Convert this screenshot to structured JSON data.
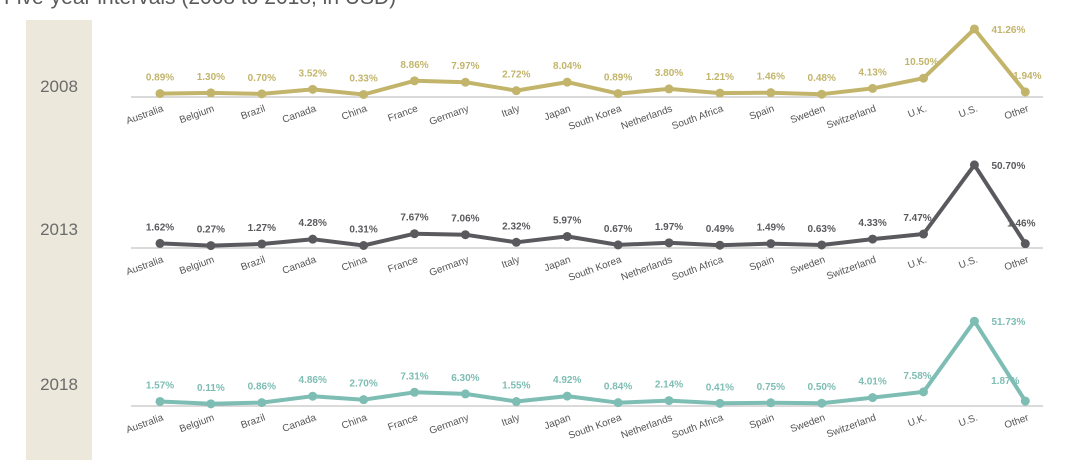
{
  "chart_data": {
    "type": "line",
    "title": "Five-year intervals (2008 to 2018, in USD)",
    "categories": [
      "Australia",
      "Belgium",
      "Brazil",
      "Canada",
      "China",
      "France",
      "Germany",
      "Italy",
      "Japan",
      "South Korea",
      "Netherlands",
      "South Africa",
      "Spain",
      "Sweden",
      "Switzerland",
      "U.K.",
      "U.S.",
      "Other"
    ],
    "ylim": [
      0,
      55
    ],
    "grid": false,
    "legend": "none",
    "series": [
      {
        "name": "2008",
        "color": "#c2b56b",
        "values": [
          0.89,
          1.3,
          0.7,
          3.52,
          0.33,
          8.86,
          7.97,
          2.72,
          8.04,
          0.89,
          3.8,
          1.21,
          1.46,
          0.48,
          4.13,
          10.5,
          41.26,
          1.94
        ],
        "labels": [
          "0.89%",
          "1.30%",
          "0.70%",
          "3.52%",
          "0.33%",
          "8.86%",
          "7.97%",
          "2.72%",
          "8.04%",
          "0.89%",
          "3.80%",
          "1.21%",
          "1.46%",
          "0.48%",
          "4.13%",
          "10.50%",
          "41.26%",
          "1.94%"
        ]
      },
      {
        "name": "2013",
        "color": "#5a5a5e",
        "values": [
          1.62,
          0.27,
          1.27,
          4.28,
          0.31,
          7.67,
          7.06,
          2.32,
          5.97,
          0.67,
          1.97,
          0.49,
          1.49,
          0.63,
          4.33,
          7.47,
          50.7,
          1.46
        ],
        "labels": [
          "1.62%",
          "0.27%",
          "1.27%",
          "4.28%",
          "0.31%",
          "7.67%",
          "7.06%",
          "2.32%",
          "5.97%",
          "0.67%",
          "1.97%",
          "0.49%",
          "1.49%",
          "0.63%",
          "4.33%",
          "7.47%",
          "50.70%",
          "1.46%"
        ]
      },
      {
        "name": "2018",
        "color": "#7dbdb4",
        "values": [
          1.57,
          0.11,
          0.86,
          4.86,
          2.7,
          7.31,
          6.3,
          1.55,
          4.92,
          0.84,
          2.14,
          0.41,
          0.75,
          0.5,
          4.01,
          7.58,
          51.73,
          1.87
        ],
        "labels": [
          "1.57%",
          "0.11%",
          "0.86%",
          "4.86%",
          "2.70%",
          "7.31%",
          "6.30%",
          "1.55%",
          "4.92%",
          "0.84%",
          "2.14%",
          "0.41%",
          "0.75%",
          "0.50%",
          "4.01%",
          "7.58%",
          "51.73%",
          "1.87%"
        ]
      }
    ]
  }
}
